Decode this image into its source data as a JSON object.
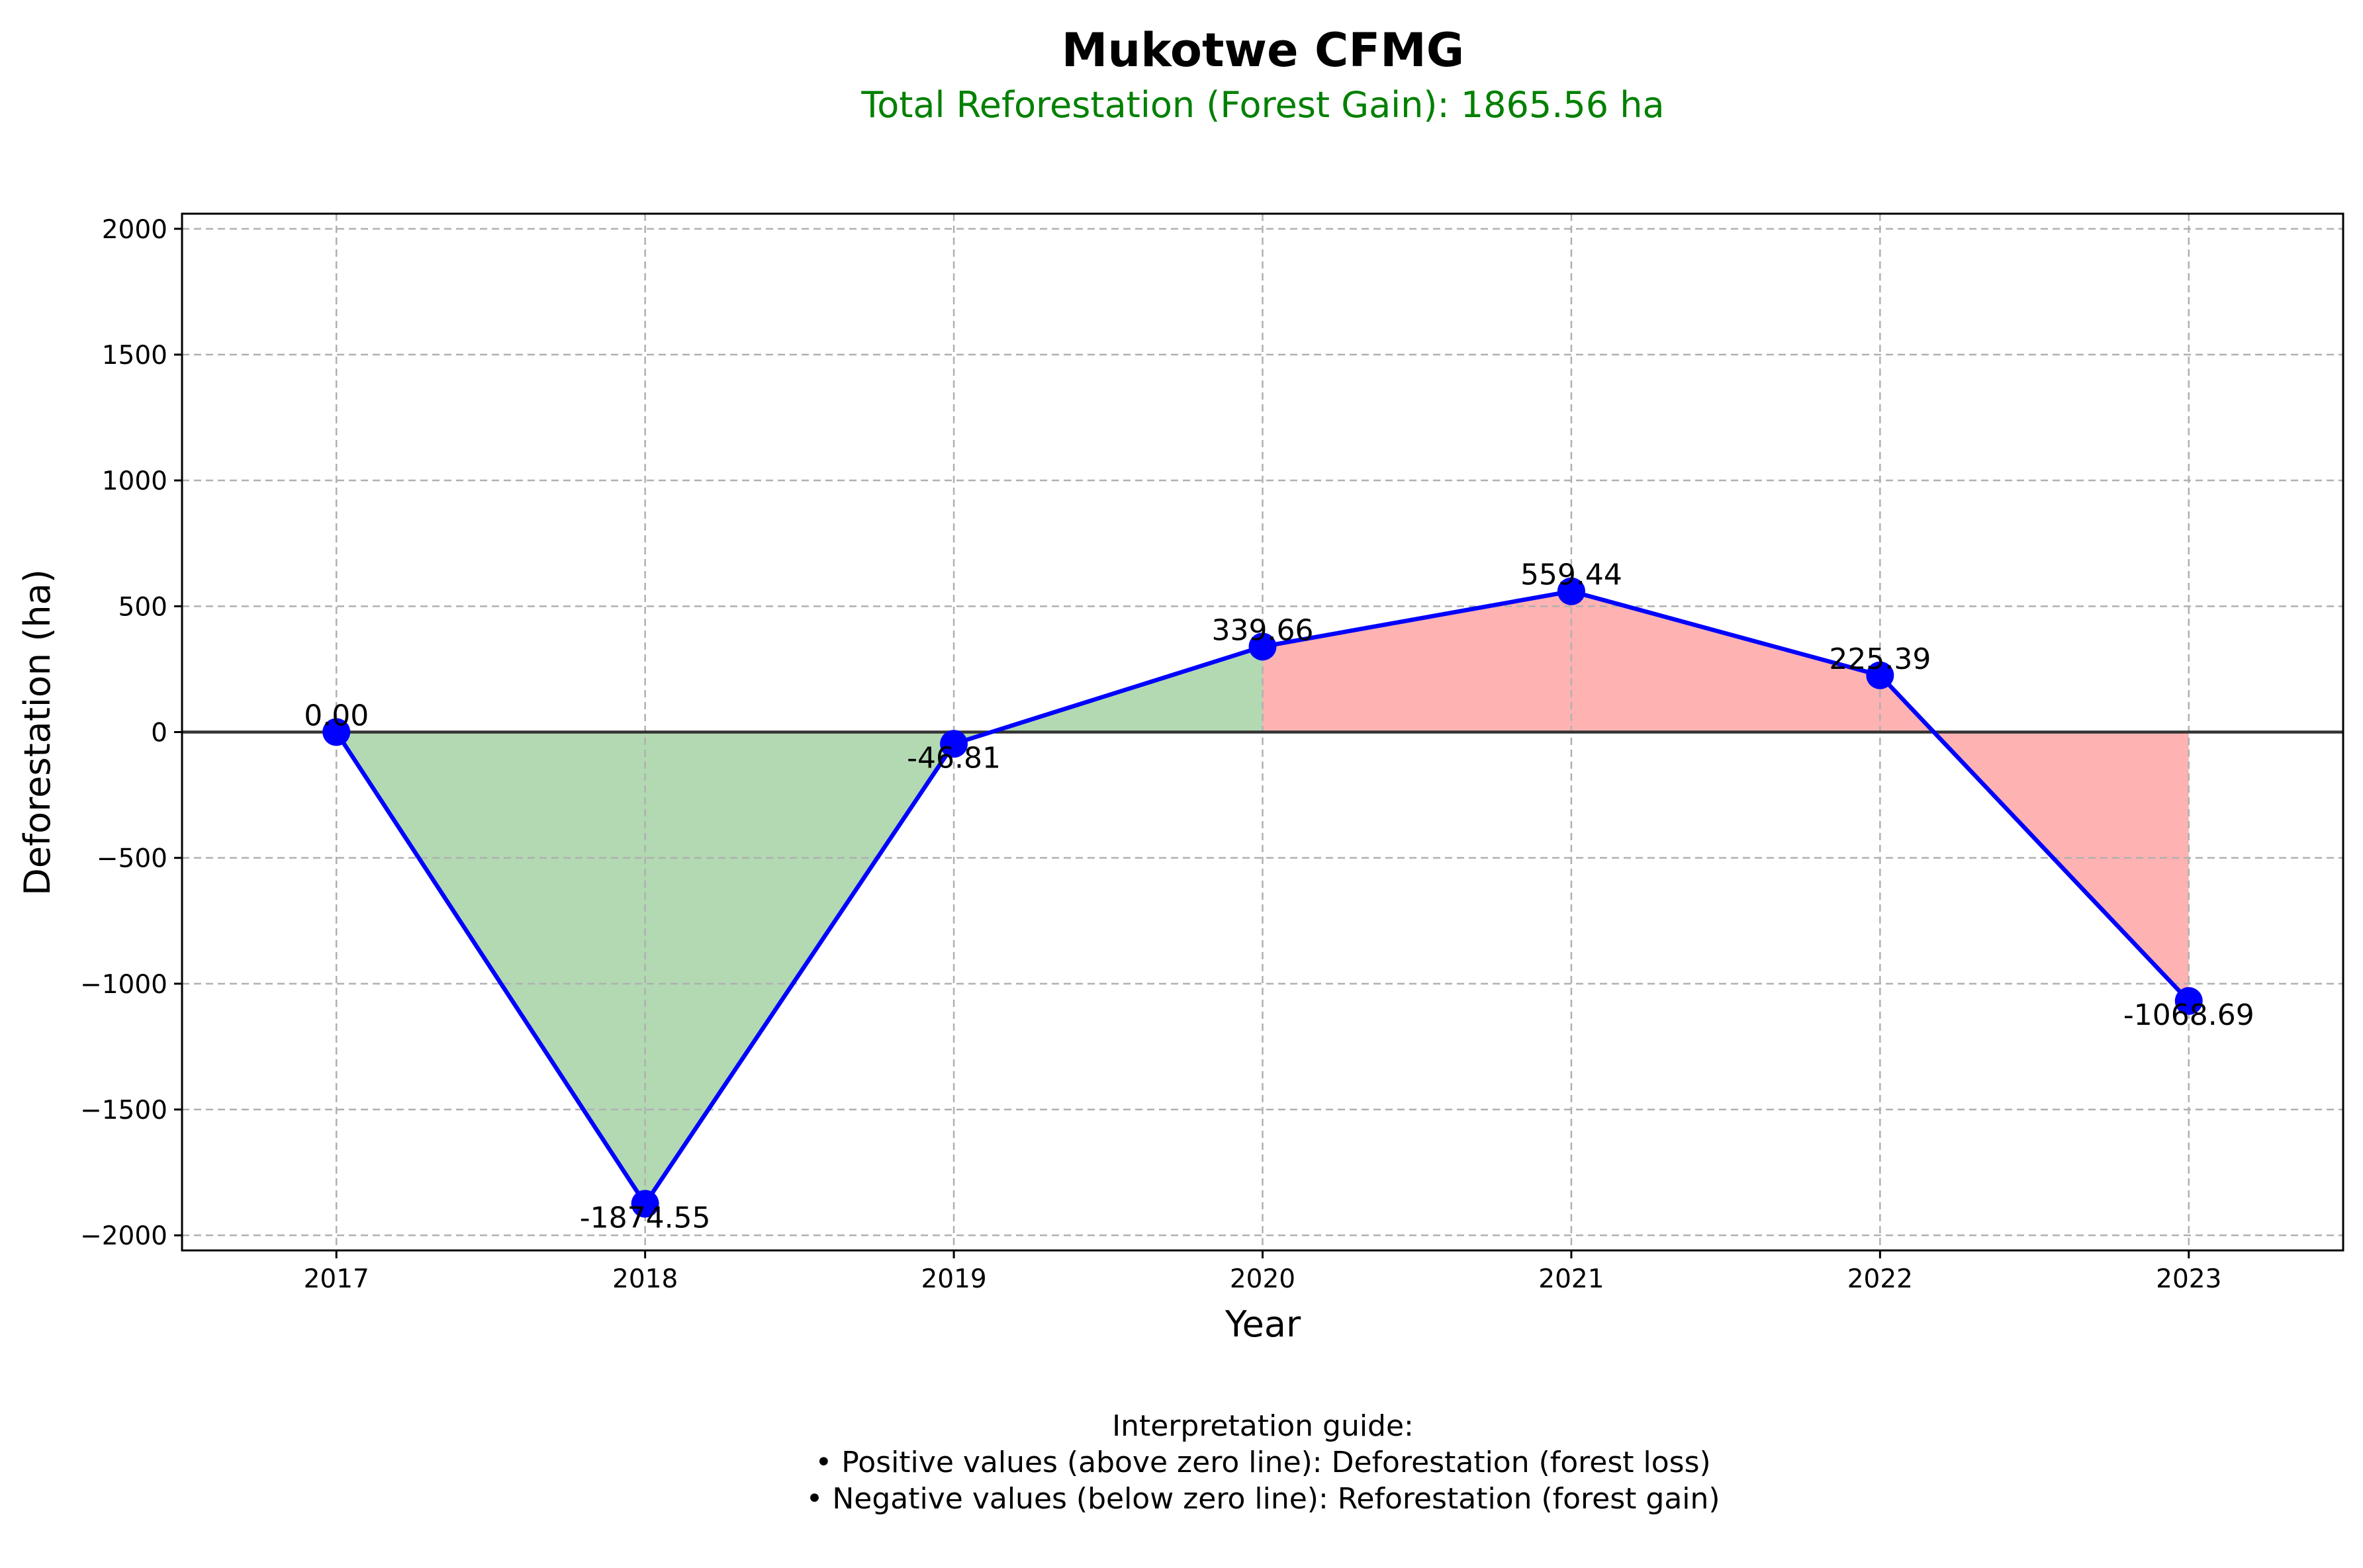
{
  "colors": {
    "line": "#0000ff",
    "marker": "#0000ff",
    "gain_fill": "#008000",
    "loss_fill": "#ff0000",
    "subtitle": "#008000",
    "zero_line": "#333333",
    "grid": "#b0b0b0"
  },
  "chart_data": {
    "type": "line",
    "title": "Mukotwe CFMG",
    "subtitle": "Total Reforestation (Forest Gain): 1865.56 ha",
    "xlabel": "Year",
    "ylabel": "Deforestation (ha)",
    "x": [
      2017,
      2018,
      2019,
      2020,
      2021,
      2022,
      2023
    ],
    "x_tick_labels": [
      "2017",
      "2018",
      "2019",
      "2020",
      "2021",
      "2022",
      "2023"
    ],
    "values": [
      0.0,
      -1874.55,
      -46.81,
      339.66,
      559.44,
      225.39,
      -1068.69
    ],
    "data_labels": [
      "0.00",
      "-1874.55",
      "-46.81",
      "339.66",
      "559.44",
      "225.39",
      "-1068.69"
    ],
    "xlim": [
      2016.5,
      2023.5
    ],
    "ylim": [
      -2060,
      2060
    ],
    "y_ticks": [
      2000,
      1500,
      1000,
      500,
      0,
      -500,
      -1000,
      -1500,
      -2000
    ],
    "y_tick_labels": [
      "2000",
      "1500",
      "1000",
      "500",
      "0",
      "−500",
      "−1000",
      "−1500",
      "−2000"
    ],
    "grid": true,
    "zero_line": true,
    "fill_green_between": [
      2017,
      2020
    ],
    "fill_red_between": [
      2020,
      2023
    ]
  },
  "guide": {
    "heading": "Interpretation guide:",
    "line1": "• Positive values (above zero line): Deforestation (forest loss)",
    "line2": "• Negative values (below zero line): Reforestation (forest gain)"
  }
}
